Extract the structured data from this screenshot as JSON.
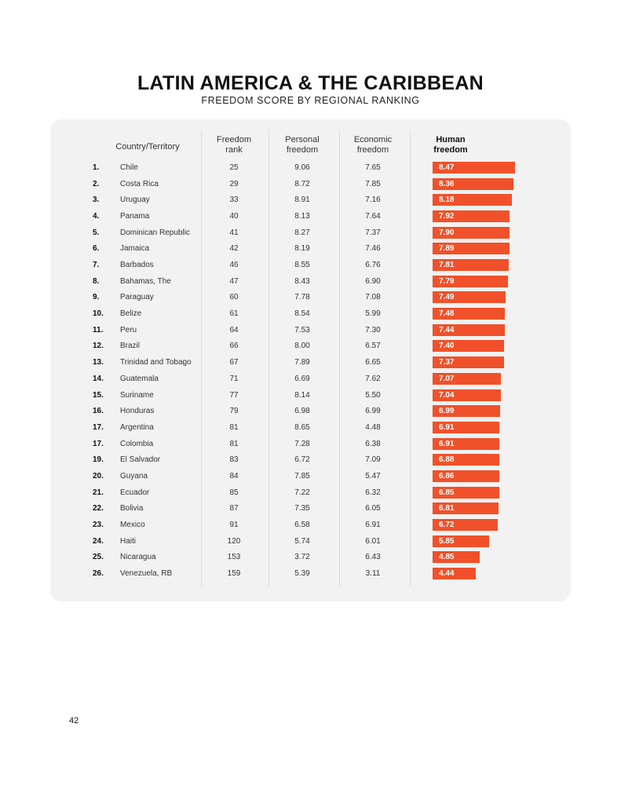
{
  "title": "LATIN AMERICA & THE CARIBBEAN",
  "subtitle": "FREEDOM SCORE BY REGIONAL RANKING",
  "page_number": "42",
  "colors": {
    "bar": "#f0512a",
    "panel": "#f2f2f2"
  },
  "headers": {
    "country": "Country/Territory",
    "rank_l1": "Freedom",
    "rank_l2": "rank",
    "personal_l1": "Personal",
    "personal_l2": "freedom",
    "economic_l1": "Economic",
    "economic_l2": "freedom",
    "human_l1": "Human",
    "human_l2": "freedom"
  },
  "chart_data": {
    "type": "table",
    "title": "LATIN AMERICA & THE CARIBBEAN",
    "subtitle": "FREEDOM SCORE BY REGIONAL RANKING",
    "columns": [
      "Country/Territory",
      "Freedom rank",
      "Personal freedom",
      "Economic freedom",
      "Human freedom"
    ],
    "rows": [
      {
        "pos": "1.",
        "country": "Chile",
        "rank": "25",
        "personal": "9.06",
        "economic": "7.65",
        "human": "8.47"
      },
      {
        "pos": "2.",
        "country": "Costa Rica",
        "rank": "29",
        "personal": "8.72",
        "economic": "7.85",
        "human": "8.36"
      },
      {
        "pos": "3.",
        "country": "Uruguay",
        "rank": "33",
        "personal": "8.91",
        "economic": "7.16",
        "human": "8.18"
      },
      {
        "pos": "4.",
        "country": "Panama",
        "rank": "40",
        "personal": "8.13",
        "economic": "7.64",
        "human": "7.92"
      },
      {
        "pos": "5.",
        "country": "Dominican Republic",
        "rank": "41",
        "personal": "8.27",
        "economic": "7.37",
        "human": "7.90"
      },
      {
        "pos": "6.",
        "country": "Jamaica",
        "rank": "42",
        "personal": "8.19",
        "economic": "7.46",
        "human": "7.89"
      },
      {
        "pos": "7.",
        "country": "Barbados",
        "rank": "46",
        "personal": "8.55",
        "economic": "6.76",
        "human": "7.81"
      },
      {
        "pos": "8.",
        "country": "Bahamas, The",
        "rank": "47",
        "personal": "8.43",
        "economic": "6.90",
        "human": "7.79"
      },
      {
        "pos": "9.",
        "country": "Paraguay",
        "rank": "60",
        "personal": "7.78",
        "economic": "7.08",
        "human": "7.49"
      },
      {
        "pos": "10.",
        "country": "Belize",
        "rank": "61",
        "personal": "8.54",
        "economic": "5.99",
        "human": "7.48"
      },
      {
        "pos": "11.",
        "country": "Peru",
        "rank": "64",
        "personal": "7.53",
        "economic": "7.30",
        "human": "7.44"
      },
      {
        "pos": "12.",
        "country": "Brazil",
        "rank": "66",
        "personal": "8.00",
        "economic": "6.57",
        "human": "7.40"
      },
      {
        "pos": "13.",
        "country": "Trinidad and Tobago",
        "rank": "67",
        "personal": "7.89",
        "economic": "6.65",
        "human": "7.37"
      },
      {
        "pos": "14.",
        "country": "Guatemala",
        "rank": "71",
        "personal": "6.69",
        "economic": "7.62",
        "human": "7.07"
      },
      {
        "pos": "15.",
        "country": "Suriname",
        "rank": "77",
        "personal": "8.14",
        "economic": "5.50",
        "human": "7.04"
      },
      {
        "pos": "16.",
        "country": "Honduras",
        "rank": "79",
        "personal": "6.98",
        "economic": "6.99",
        "human": "6.99"
      },
      {
        "pos": "17.",
        "country": "Argentina",
        "rank": "81",
        "personal": "8.65",
        "economic": "4.48",
        "human": "6.91"
      },
      {
        "pos": "17.",
        "country": "Colombia",
        "rank": "81",
        "personal": "7.28",
        "economic": "6.38",
        "human": "6.91"
      },
      {
        "pos": "19.",
        "country": "El Salvador",
        "rank": "83",
        "personal": "6.72",
        "economic": "7.09",
        "human": "6.88"
      },
      {
        "pos": "20.",
        "country": "Guyana",
        "rank": "84",
        "personal": "7.85",
        "economic": "5.47",
        "human": "6.86"
      },
      {
        "pos": "21.",
        "country": "Ecuador",
        "rank": "85",
        "personal": "7.22",
        "economic": "6.32",
        "human": "6.85"
      },
      {
        "pos": "22.",
        "country": "Bolivia",
        "rank": "87",
        "personal": "7.35",
        "economic": "6.05",
        "human": "6.81"
      },
      {
        "pos": "23.",
        "country": "Mexico",
        "rank": "91",
        "personal": "6.58",
        "economic": "6.91",
        "human": "6.72"
      },
      {
        "pos": "24.",
        "country": "Haiti",
        "rank": "120",
        "personal": "5.74",
        "economic": "6.01",
        "human": "5.85"
      },
      {
        "pos": "25.",
        "country": "Nicaragua",
        "rank": "153",
        "personal": "3.72",
        "economic": "6.43",
        "human": "4.85"
      },
      {
        "pos": "26.",
        "country": "Venezuela, RB",
        "rank": "159",
        "personal": "5.39",
        "economic": "3.11",
        "human": "4.44"
      }
    ]
  }
}
